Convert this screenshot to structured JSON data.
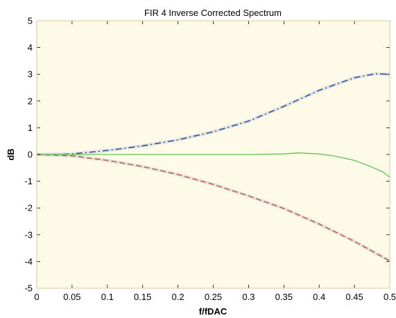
{
  "chart_data": {
    "type": "line",
    "title": "FIR 4 Inverse Corrected Spectrum",
    "xlabel": "f/fDAC",
    "ylabel": "dB",
    "xlim": [
      0,
      0.5
    ],
    "ylim": [
      -5,
      5
    ],
    "x_ticks": [
      0,
      0.05,
      0.1,
      0.15,
      0.2,
      0.25,
      0.3,
      0.35,
      0.4,
      0.45,
      0.5
    ],
    "x_tick_labels": [
      "0",
      "0.05",
      "0.1",
      "0.15",
      "0.2",
      "0.25",
      "0.3",
      "0.35",
      "0.4",
      "0.45",
      "0.5"
    ],
    "y_ticks": [
      5,
      4,
      3,
      2,
      1,
      0,
      -1,
      -2,
      -3,
      -4,
      -5
    ],
    "y_tick_labels": [
      "5",
      "4",
      "3",
      "2",
      "1",
      "0",
      "-1",
      "-2",
      "-3",
      "-4",
      "-5"
    ],
    "grid": false,
    "plot_background": "#fdfbe8",
    "frame_color": "#d8c98f",
    "series": [
      {
        "style": "dash-dot",
        "color": "#2b4fa8",
        "x": [
          0,
          0.05,
          0.1,
          0.15,
          0.2,
          0.25,
          0.3,
          0.35,
          0.4,
          0.45,
          0.48,
          0.5
        ],
        "values": [
          0,
          0.02,
          0.15,
          0.32,
          0.55,
          0.85,
          1.25,
          1.8,
          2.4,
          2.87,
          3.02,
          3.0
        ]
      },
      {
        "style": "dashed",
        "color": "#c0604c",
        "x": [
          0,
          0.05,
          0.1,
          0.15,
          0.2,
          0.25,
          0.3,
          0.35,
          0.4,
          0.45,
          0.5
        ],
        "values": [
          0,
          -0.05,
          -0.22,
          -0.45,
          -0.75,
          -1.12,
          -1.55,
          -2.02,
          -2.6,
          -3.25,
          -3.98
        ]
      },
      {
        "style": "solid",
        "color": "#5fc24e",
        "x": [
          0,
          0.05,
          0.1,
          0.15,
          0.2,
          0.25,
          0.3,
          0.35,
          0.37,
          0.4,
          0.42,
          0.45,
          0.47,
          0.49,
          0.5
        ],
        "values": [
          0,
          0,
          0,
          0,
          0,
          0,
          0,
          0.02,
          0.06,
          0.02,
          -0.05,
          -0.22,
          -0.42,
          -0.65,
          -0.85
        ]
      }
    ]
  }
}
